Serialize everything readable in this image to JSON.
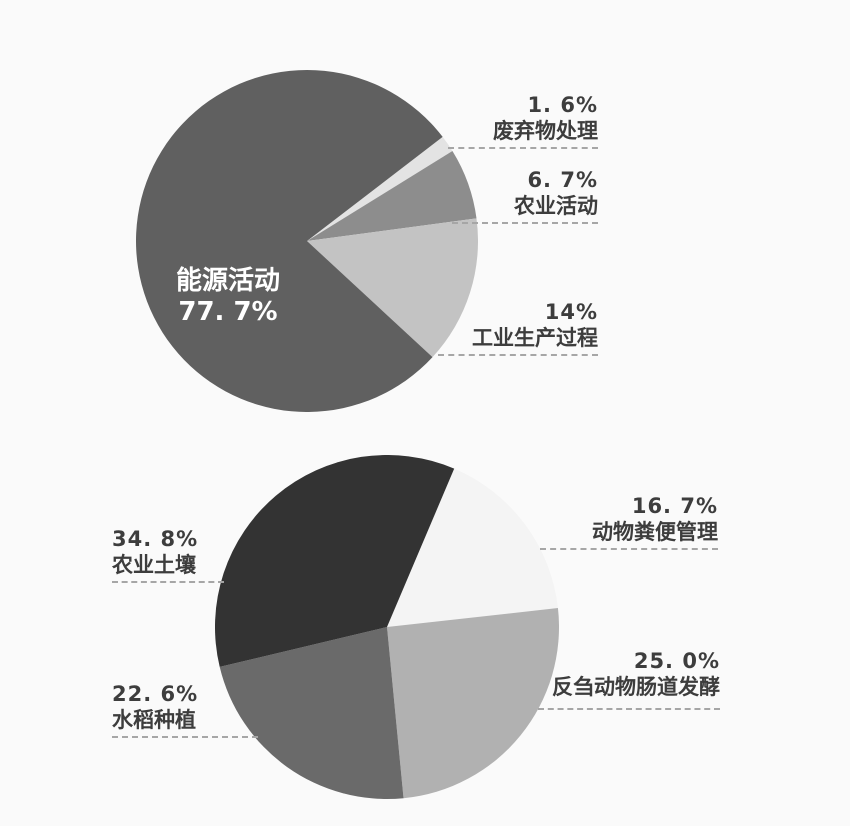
{
  "chart_data": [
    {
      "type": "pie",
      "name": "greenhouse-gas-emissions-by-source",
      "legend": "none",
      "label_style": "dashed-leader-lines",
      "slices": [
        {
          "label": "废弃物处理",
          "pct_label": "1. 6%",
          "value": 1.6,
          "color": "#e3e3e3"
        },
        {
          "label": "农业活动",
          "pct_label": "6. 7%",
          "value": 6.7,
          "color": "#8d8d8d"
        },
        {
          "label": "工业生产过程",
          "pct_label": "14%",
          "value": 14.0,
          "color": "#c3c3c3"
        },
        {
          "label": "能源活动",
          "pct_label": "77. 7%",
          "value": 77.7,
          "color": "#606060"
        }
      ],
      "layout": {
        "start_angle_deg": 52.5
      }
    },
    {
      "type": "pie",
      "name": "agricultural-methane-emissions-by-source",
      "legend": "none",
      "label_style": "dashed-leader-lines",
      "slices": [
        {
          "label": "动物粪便管理",
          "pct_label": "16. 7%",
          "value": 16.7,
          "color": "#f4f4f4"
        },
        {
          "label": "反刍动物肠道发酵",
          "pct_label": "25. 0%",
          "value": 25.0,
          "color": "#b1b1b1"
        },
        {
          "label": "水稻种植",
          "pct_label": "22. 6%",
          "value": 22.6,
          "color": "#6a6a6a"
        },
        {
          "label": "农业土壤",
          "pct_label": "34. 8%",
          "value": 34.8,
          "color": "#333333"
        }
      ],
      "layout": {
        "start_angle_deg": 23
      }
    }
  ]
}
